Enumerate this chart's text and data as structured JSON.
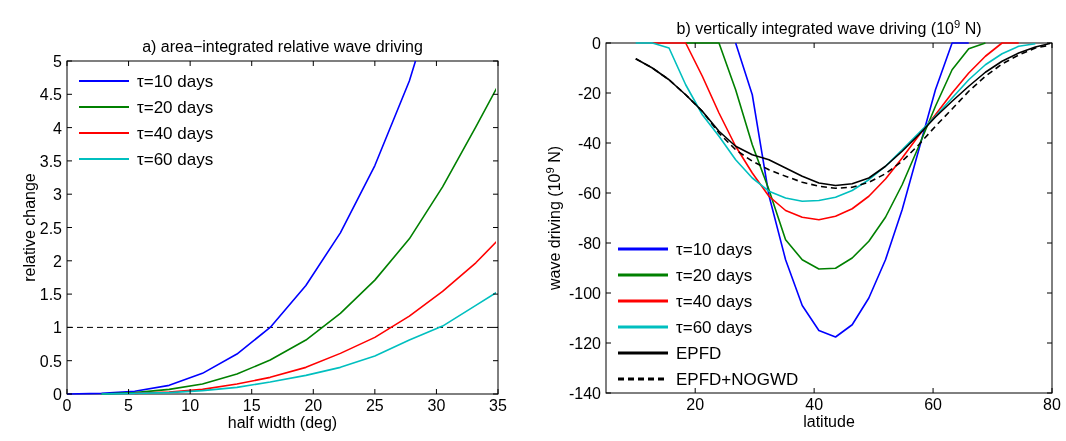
{
  "chart_data": [
    {
      "type": "line",
      "title": "a) area−integrated relative wave driving",
      "xlabel": "half width (deg)",
      "ylabel": "relative change",
      "xlim": [
        0,
        35
      ],
      "xticks": [
        0,
        5,
        10,
        15,
        20,
        25,
        30,
        35
      ],
      "ylim": [
        0,
        5
      ],
      "yticks": [
        0,
        0.5,
        1,
        1.5,
        2,
        2.5,
        3,
        3.5,
        4,
        4.5,
        5
      ],
      "legend": "top left",
      "grid": false,
      "line_style": "solid",
      "ref_lines": [
        {
          "axis": "y",
          "value": 1,
          "color": "#000000",
          "line_style": "dashed"
        }
      ],
      "series": [
        {
          "name": "τ=10 days",
          "color": "#0000ff",
          "x": [
            0,
            2.8,
            5.5,
            8.3,
            11,
            13.8,
            16.5,
            19.4,
            22.2,
            25,
            27.8,
            28.3
          ],
          "values": [
            0,
            0.01,
            0.04,
            0.13,
            0.31,
            0.6,
            1.0,
            1.63,
            2.42,
            3.43,
            4.7,
            5.0
          ]
        },
        {
          "name": "τ=20 days",
          "color": "#008000",
          "x": [
            2.8,
            5.5,
            8.3,
            11,
            13.8,
            16.5,
            19.4,
            22.2,
            25,
            27.8,
            30.5,
            33.2,
            35
          ],
          "values": [
            0,
            0.02,
            0.07,
            0.15,
            0.3,
            0.51,
            0.81,
            1.21,
            1.71,
            2.33,
            3.11,
            4.01,
            4.63
          ]
        },
        {
          "name": "τ=40 days",
          "color": "#ff0000",
          "x": [
            5.5,
            8.3,
            11,
            13.8,
            16.5,
            19.4,
            22.2,
            25,
            27.8,
            30.5,
            33.2,
            35
          ],
          "values": [
            0.01,
            0.03,
            0.07,
            0.15,
            0.25,
            0.4,
            0.61,
            0.85,
            1.17,
            1.54,
            1.97,
            2.31
          ]
        },
        {
          "name": "τ=60 days",
          "color": "#00bfbf",
          "x": [
            2.8,
            5.5,
            8.3,
            11,
            13.8,
            16.5,
            19.4,
            22.2,
            25,
            27.8,
            30.5,
            33.2,
            35
          ],
          "values": [
            0,
            0.01,
            0.02,
            0.05,
            0.1,
            0.18,
            0.28,
            0.4,
            0.57,
            0.81,
            1.02,
            1.33,
            1.54
          ]
        }
      ]
    },
    {
      "type": "line",
      "title": "b) vertically integrated wave driving (10$^{9}$ N)",
      "xlabel": "latitude",
      "ylabel": "wave driving (10$^{9}$ N)",
      "xlim": [
        5,
        80
      ],
      "xticks": [
        20,
        40,
        60,
        80
      ],
      "ylim": [
        -140,
        0
      ],
      "yticks": [
        -140,
        -120,
        -100,
        -80,
        -60,
        -40,
        -20,
        0
      ],
      "legend": "bottom left",
      "grid": false,
      "x": [
        10,
        12.8,
        15.6,
        18.4,
        21.2,
        24,
        26.8,
        29.6,
        32.4,
        35.2,
        38,
        40.8,
        43.6,
        46.4,
        49.2,
        52,
        54.8,
        57.6,
        60.4,
        63.2,
        66,
        68.8,
        71.6,
        74.4,
        77.2,
        80
      ],
      "series": [
        {
          "name": "τ=10 days",
          "color": "#0000ff",
          "values": [
            null,
            null,
            null,
            null,
            null,
            null,
            0,
            -20.7,
            -61,
            -86.7,
            -105,
            -115,
            -117.6,
            -112.7,
            -102,
            -86.7,
            -66.7,
            -42.7,
            -18.7,
            0,
            0,
            null,
            null,
            null,
            null,
            null
          ]
        },
        {
          "name": "τ=20 days",
          "color": "#008000",
          "values": [
            null,
            null,
            null,
            0,
            0,
            0,
            -18.7,
            -40.7,
            -58.7,
            -78.7,
            -86.7,
            -90.4,
            -90.1,
            -86,
            -79.3,
            -69.7,
            -56.7,
            -41.3,
            -25.3,
            -10.7,
            -2.3,
            0,
            null,
            null,
            null,
            null
          ]
        },
        {
          "name": "τ=40 days",
          "color": "#ff0000",
          "values": [
            null,
            0,
            0,
            0,
            -13.3,
            -28,
            -41.3,
            -52,
            -61.3,
            -67,
            -69.7,
            -70.7,
            -69.3,
            -66.3,
            -61.3,
            -54.4,
            -46,
            -37,
            -28.7,
            -20,
            -12,
            -5.3,
            0,
            0,
            null,
            null
          ]
        },
        {
          "name": "τ=60 days",
          "color": "#00bfbf",
          "values": [
            0,
            0,
            -2,
            -16.7,
            -28.7,
            -37.3,
            -46.7,
            -54,
            -59.3,
            -62,
            -63.3,
            -63,
            -61.7,
            -59,
            -54.7,
            -49.3,
            -42.7,
            -36,
            -29.3,
            -22,
            -14.7,
            -8.7,
            -4.3,
            -1.3,
            -0.3,
            null
          ]
        },
        {
          "name": "EPFD",
          "color": "#000000",
          "line_style": "solid",
          "values": [
            -6.3,
            -10,
            -14.7,
            -20.7,
            -27.3,
            -35.3,
            -41.3,
            -44.7,
            -46.7,
            -50,
            -53.3,
            -56,
            -57,
            -56.3,
            -54,
            -49.3,
            -43.3,
            -36.7,
            -29.6,
            -23.3,
            -17.3,
            -11.7,
            -7.3,
            -4,
            -1.6,
            0
          ]
        },
        {
          "name": "EPFD+NOGWD",
          "color": "#000000",
          "line_style": "dashed",
          "values": [
            -6.3,
            -10,
            -14.7,
            -20.7,
            -27.3,
            -36,
            -42.7,
            -47.3,
            -50.7,
            -53.3,
            -55.7,
            -57.3,
            -58.1,
            -57.7,
            -55.7,
            -52.3,
            -47.3,
            -40.7,
            -33.3,
            -26.4,
            -19.3,
            -13.3,
            -8.4,
            -4.8,
            -2,
            -0.7
          ]
        }
      ]
    }
  ]
}
